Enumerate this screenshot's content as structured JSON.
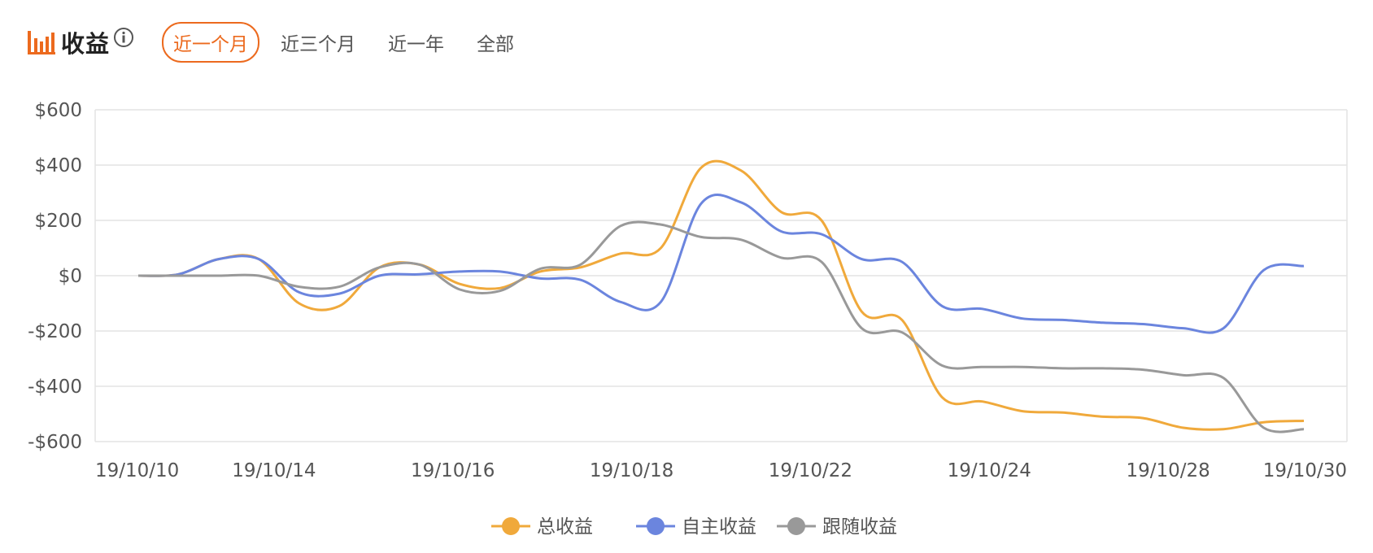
{
  "header": {
    "title": "收益",
    "tabs": [
      {
        "label": "近一个月",
        "active": true
      },
      {
        "label": "近三个月",
        "active": false
      },
      {
        "label": "近一年",
        "active": false
      },
      {
        "label": "全部",
        "active": false
      }
    ],
    "icons": [
      "bar-chart-icon",
      "info-icon"
    ],
    "accent_color": "#ec6a1e"
  },
  "chart_data": {
    "type": "line",
    "x_tick_labels": [
      "19/10/10",
      "19/10/14",
      "19/10/16",
      "19/10/18",
      "19/10/22",
      "19/10/24",
      "19/10/28",
      "19/10/30"
    ],
    "y_tick_labels": [
      "$600",
      "$400",
      "$200",
      "$0",
      "-$200",
      "-$400",
      "-$600"
    ],
    "ylim": [
      -600,
      600
    ],
    "grid": true,
    "legend_position": "bottom-center",
    "series": [
      {
        "name": "总收益",
        "color": "#f0a93b",
        "values": [
          0,
          5,
          60,
          60,
          -100,
          -110,
          30,
          40,
          -30,
          -45,
          15,
          30,
          80,
          100,
          390,
          380,
          230,
          200,
          -130,
          -160,
          -440,
          -455,
          -490,
          -495,
          -510,
          -515,
          -550,
          -555,
          -530,
          -525
        ]
      },
      {
        "name": "自主收益",
        "color": "#6b85de",
        "values": [
          0,
          5,
          60,
          60,
          -60,
          -65,
          0,
          5,
          15,
          15,
          -10,
          -15,
          -95,
          -95,
          260,
          265,
          160,
          150,
          60,
          50,
          -110,
          -120,
          -155,
          -160,
          -170,
          -175,
          -190,
          -190,
          20,
          35
        ]
      },
      {
        "name": "跟随收益",
        "color": "#999999",
        "values": [
          0,
          0,
          0,
          0,
          -40,
          -40,
          30,
          40,
          -50,
          -55,
          25,
          40,
          180,
          185,
          140,
          130,
          65,
          50,
          -190,
          -205,
          -325,
          -330,
          -330,
          -335,
          -335,
          -340,
          -360,
          -370,
          -550,
          -555
        ]
      }
    ]
  }
}
